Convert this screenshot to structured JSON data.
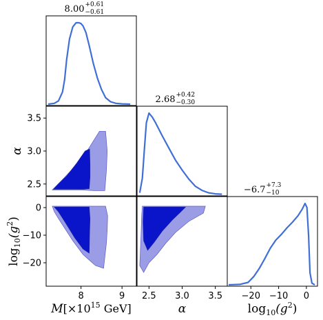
{
  "chart_data": {
    "type": "corner",
    "parameters": [
      {
        "name": "M",
        "label_base": "M",
        "label_unit": "[×10",
        "label_exp": "15",
        "label_tail": " GeV]",
        "title": "8.00",
        "title_up": "+0.61",
        "title_down": "−0.61",
        "range": [
          7.15,
          9.35
        ],
        "ticks": [
          8,
          9
        ],
        "tick_labels": [
          "8",
          "9"
        ]
      },
      {
        "name": "alpha",
        "label_base": "α",
        "title": "2.68",
        "title_up": "+0.42",
        "title_down": "−0.30",
        "range": [
          2.32,
          3.68
        ],
        "ticks": [
          2.5,
          3.0,
          3.5
        ],
        "tick_labels": [
          "2.5",
          "3.0",
          "3.5"
        ]
      },
      {
        "name": "log10_g2",
        "label_base": "log",
        "label_sub": "10",
        "label_arg": "(g",
        "label_exp": "2",
        "label_close": ")",
        "title": "−6.7",
        "title_up": "+7.3",
        "title_down": "−10",
        "range": [
          -28.5,
          4.0
        ],
        "ticks": [
          -20,
          -10,
          0
        ],
        "tick_labels": [
          "−20",
          "−10",
          "0"
        ]
      }
    ],
    "marginals": [
      {
        "param": "M",
        "x": [
          7.2,
          7.35,
          7.45,
          7.55,
          7.6,
          7.65,
          7.72,
          7.8,
          7.88,
          7.95,
          8.0,
          8.05,
          8.12,
          8.2,
          8.3,
          8.4,
          8.5,
          8.6,
          8.72,
          8.85,
          9.0,
          9.2
        ],
        "y": [
          0,
          0.01,
          0.04,
          0.15,
          0.3,
          0.55,
          0.8,
          0.95,
          1.0,
          1.0,
          0.99,
          0.96,
          0.88,
          0.72,
          0.5,
          0.32,
          0.18,
          0.08,
          0.03,
          0.01,
          0.003,
          0
        ]
      },
      {
        "param": "alpha",
        "x": [
          2.36,
          2.4,
          2.43,
          2.46,
          2.5,
          2.55,
          2.6,
          2.7,
          2.8,
          2.9,
          3.0,
          3.1,
          3.2,
          3.3,
          3.4,
          3.5,
          3.6
        ],
        "y": [
          0.02,
          0.2,
          0.55,
          0.88,
          1.0,
          0.95,
          0.88,
          0.72,
          0.57,
          0.42,
          0.3,
          0.19,
          0.1,
          0.05,
          0.02,
          0.008,
          0.003
        ]
      },
      {
        "param": "log10_g2",
        "x": [
          -28,
          -24,
          -21,
          -19,
          -17,
          -15,
          -13,
          -11,
          -9,
          -7,
          -5,
          -3,
          -1.5,
          -0.5,
          0.2,
          0.8,
          1.3,
          2.0,
          3.0
        ],
        "y": [
          0,
          0.005,
          0.03,
          0.1,
          0.2,
          0.32,
          0.45,
          0.55,
          0.62,
          0.7,
          0.77,
          0.85,
          0.93,
          1.0,
          0.95,
          0.6,
          0.15,
          0.02,
          0
        ]
      }
    ],
    "contours": [
      {
        "x_param": "M",
        "y_param": "alpha",
        "outer": [
          [
            7.3,
            2.41
          ],
          [
            8.02,
            2.41
          ],
          [
            8.32,
            2.4
          ],
          [
            8.58,
            2.4
          ],
          [
            8.62,
            2.7
          ],
          [
            8.64,
            3.0
          ],
          [
            8.6,
            3.3
          ],
          [
            8.45,
            3.3
          ],
          [
            8.2,
            3.05
          ],
          [
            7.9,
            2.8
          ],
          [
            7.6,
            2.6
          ]
        ],
        "inner": [
          [
            7.33,
            2.42
          ],
          [
            8.05,
            2.42
          ],
          [
            8.2,
            2.43
          ],
          [
            8.22,
            2.6
          ],
          [
            8.22,
            2.8
          ],
          [
            8.21,
            3.03
          ],
          [
            8.1,
            3.0
          ],
          [
            7.9,
            2.82
          ],
          [
            7.65,
            2.62
          ],
          [
            7.45,
            2.5
          ]
        ]
      },
      {
        "x_param": "M",
        "y_param": "log10_g2",
        "outer": [
          [
            7.3,
            0.5
          ],
          [
            8.6,
            0.5
          ],
          [
            8.65,
            -3
          ],
          [
            8.64,
            -8
          ],
          [
            8.62,
            -13
          ],
          [
            8.58,
            -18
          ],
          [
            8.55,
            -22
          ],
          [
            8.35,
            -21
          ],
          [
            8.05,
            -17
          ],
          [
            7.8,
            -12
          ],
          [
            7.45,
            -4
          ],
          [
            7.35,
            -1.5
          ]
        ],
        "inner": [
          [
            7.35,
            0.2
          ],
          [
            8.2,
            0.2
          ],
          [
            8.22,
            -4
          ],
          [
            8.21,
            -9
          ],
          [
            8.2,
            -16.5
          ],
          [
            8.05,
            -15
          ],
          [
            7.85,
            -11
          ],
          [
            7.6,
            -5
          ],
          [
            7.45,
            -1.5
          ]
        ]
      },
      {
        "x_param": "alpha",
        "y_param": "log10_g2",
        "outer": [
          [
            2.4,
            0.5
          ],
          [
            3.35,
            0.5
          ],
          [
            3.32,
            -2
          ],
          [
            3.1,
            -5
          ],
          [
            2.9,
            -9
          ],
          [
            2.75,
            -13
          ],
          [
            2.62,
            -17
          ],
          [
            2.5,
            -20
          ],
          [
            2.42,
            -23.5
          ],
          [
            2.36,
            -21
          ],
          [
            2.38,
            -10
          ],
          [
            2.39,
            -3
          ]
        ],
        "inner": [
          [
            2.42,
            0.2
          ],
          [
            3.05,
            0.2
          ],
          [
            2.98,
            -1.5
          ],
          [
            2.85,
            -4.5
          ],
          [
            2.7,
            -8.5
          ],
          [
            2.58,
            -12.5
          ],
          [
            2.48,
            -15.5
          ],
          [
            2.42,
            -12
          ],
          [
            2.41,
            -5
          ]
        ]
      }
    ],
    "colors": {
      "line": "#3f6fd6",
      "contour_68": "#0a14c9",
      "contour_95": "#9a9ce6"
    }
  }
}
